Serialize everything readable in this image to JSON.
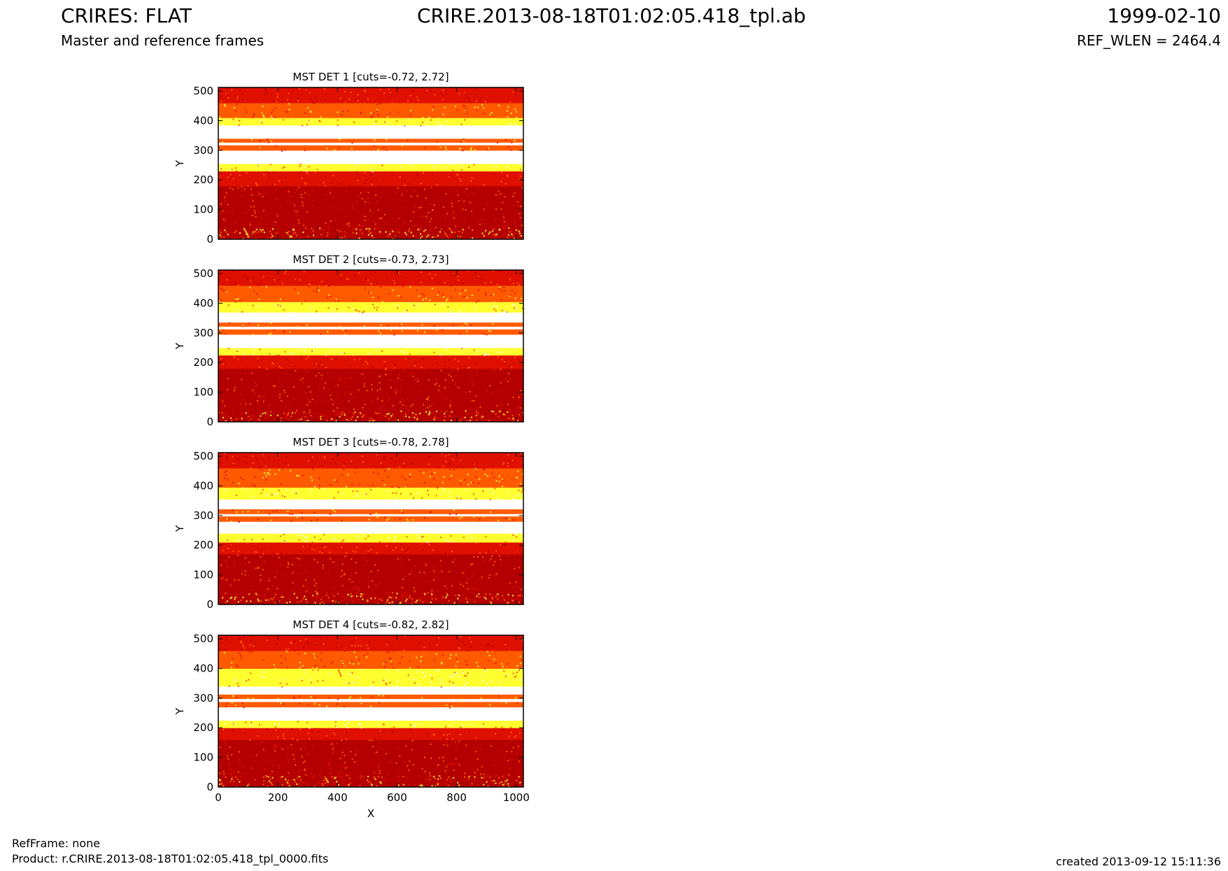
{
  "header": {
    "title": "CRIRES: FLAT",
    "subtitle": "Master and reference frames",
    "file": "CRIRE.2013-08-18T01:02:05.418_tpl.ab",
    "date": "1999-02-10",
    "ref_wlen": "REF_WLEN = 2464.4"
  },
  "footer": {
    "refframe": "RefFrame: none",
    "product": "Product: r.CRIRE.2013-08-18T01:02:05.418_tpl_0000.fits",
    "created": "created 2013-09-12 15:11:36"
  },
  "colors": {
    "dark": "#b40000",
    "red": "#e01000",
    "orange": "#ff5a00",
    "yellow": "#ffff30",
    "white": "#ffffff"
  },
  "chart_data": [
    {
      "type": "heatmap",
      "title": "MST DET 1 [cuts=-0.72, 2.72]",
      "xlabel": "",
      "ylabel": "Y",
      "xlim": [
        0,
        1024
      ],
      "ylim": [
        0,
        512
      ],
      "xticks": [],
      "yticks": [
        0,
        100,
        200,
        300,
        400,
        500
      ],
      "bands": [
        {
          "y0": 0,
          "y1": 40,
          "level": "speckled"
        },
        {
          "y0": 40,
          "y1": 180,
          "level": "dark"
        },
        {
          "y0": 180,
          "y1": 230,
          "level": "red"
        },
        {
          "y0": 230,
          "y1": 255,
          "level": "yellow"
        },
        {
          "y0": 255,
          "y1": 300,
          "level": "white"
        },
        {
          "y0": 300,
          "y1": 318,
          "level": "orange"
        },
        {
          "y0": 318,
          "y1": 327,
          "level": "white"
        },
        {
          "y0": 327,
          "y1": 340,
          "level": "orange"
        },
        {
          "y0": 340,
          "y1": 385,
          "level": "white"
        },
        {
          "y0": 385,
          "y1": 410,
          "level": "yellow"
        },
        {
          "y0": 410,
          "y1": 460,
          "level": "orange"
        },
        {
          "y0": 460,
          "y1": 512,
          "level": "red"
        }
      ]
    },
    {
      "type": "heatmap",
      "title": "MST DET 2 [cuts=-0.73, 2.73]",
      "xlabel": "",
      "ylabel": "Y",
      "xlim": [
        0,
        1024
      ],
      "ylim": [
        0,
        512
      ],
      "xticks": [],
      "yticks": [
        0,
        100,
        200,
        300,
        400,
        500
      ],
      "bands": [
        {
          "y0": 0,
          "y1": 40,
          "level": "speckled"
        },
        {
          "y0": 40,
          "y1": 180,
          "level": "dark"
        },
        {
          "y0": 180,
          "y1": 225,
          "level": "red"
        },
        {
          "y0": 225,
          "y1": 250,
          "level": "yellow"
        },
        {
          "y0": 250,
          "y1": 295,
          "level": "white"
        },
        {
          "y0": 295,
          "y1": 313,
          "level": "orange"
        },
        {
          "y0": 313,
          "y1": 322,
          "level": "white"
        },
        {
          "y0": 322,
          "y1": 336,
          "level": "orange"
        },
        {
          "y0": 336,
          "y1": 370,
          "level": "white"
        },
        {
          "y0": 370,
          "y1": 405,
          "level": "yellow"
        },
        {
          "y0": 405,
          "y1": 460,
          "level": "orange"
        },
        {
          "y0": 460,
          "y1": 512,
          "level": "red"
        }
      ]
    },
    {
      "type": "heatmap",
      "title": "MST DET 3 [cuts=-0.78, 2.78]",
      "xlabel": "",
      "ylabel": "Y",
      "xlim": [
        0,
        1024
      ],
      "ylim": [
        0,
        512
      ],
      "xticks": [],
      "yticks": [
        0,
        100,
        200,
        300,
        400,
        500
      ],
      "bands": [
        {
          "y0": 0,
          "y1": 40,
          "level": "speckled"
        },
        {
          "y0": 40,
          "y1": 170,
          "level": "dark"
        },
        {
          "y0": 170,
          "y1": 210,
          "level": "red"
        },
        {
          "y0": 210,
          "y1": 240,
          "level": "yellow"
        },
        {
          "y0": 240,
          "y1": 280,
          "level": "white"
        },
        {
          "y0": 280,
          "y1": 298,
          "level": "orange"
        },
        {
          "y0": 298,
          "y1": 306,
          "level": "white"
        },
        {
          "y0": 306,
          "y1": 322,
          "level": "orange"
        },
        {
          "y0": 322,
          "y1": 355,
          "level": "white"
        },
        {
          "y0": 355,
          "y1": 395,
          "level": "yellow"
        },
        {
          "y0": 395,
          "y1": 460,
          "level": "orange"
        },
        {
          "y0": 460,
          "y1": 512,
          "level": "red"
        }
      ]
    },
    {
      "type": "heatmap",
      "title": "MST DET 4 [cuts=-0.82, 2.82]",
      "xlabel": "X",
      "ylabel": "Y",
      "xlim": [
        0,
        1024
      ],
      "ylim": [
        0,
        512
      ],
      "xticks": [
        0,
        200,
        400,
        600,
        800,
        1000
      ],
      "yticks": [
        0,
        100,
        200,
        300,
        400,
        500
      ],
      "bands": [
        {
          "y0": 0,
          "y1": 40,
          "level": "speckled"
        },
        {
          "y0": 40,
          "y1": 160,
          "level": "dark"
        },
        {
          "y0": 160,
          "y1": 200,
          "level": "red"
        },
        {
          "y0": 200,
          "y1": 225,
          "level": "yellow"
        },
        {
          "y0": 225,
          "y1": 270,
          "level": "white"
        },
        {
          "y0": 270,
          "y1": 288,
          "level": "orange"
        },
        {
          "y0": 288,
          "y1": 298,
          "level": "white"
        },
        {
          "y0": 298,
          "y1": 313,
          "level": "orange"
        },
        {
          "y0": 313,
          "y1": 340,
          "level": "white"
        },
        {
          "y0": 340,
          "y1": 400,
          "level": "yellow"
        },
        {
          "y0": 400,
          "y1": 460,
          "level": "orange"
        },
        {
          "y0": 460,
          "y1": 512,
          "level": "red"
        }
      ]
    }
  ]
}
